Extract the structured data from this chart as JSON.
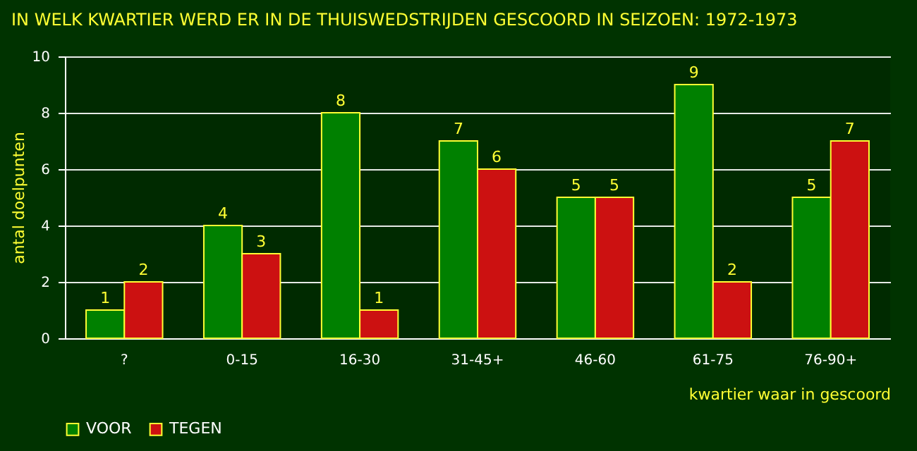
{
  "chart_data": {
    "type": "bar",
    "title": "IN WELK KWARTIER WERD ER IN DE THUISWEDSTRIJDEN GESCOORD IN SEIZOEN: 1972-1973",
    "xlabel": "kwartier waar in gescoord",
    "ylabel": "antal doelpunten",
    "categories": [
      "?",
      "0-15",
      "16-30",
      "31-45+",
      "46-60",
      "61-75",
      "76-90+"
    ],
    "series": [
      {
        "name": "VOOR",
        "color": "#008000",
        "values": [
          1,
          4,
          8,
          7,
          5,
          9,
          5
        ]
      },
      {
        "name": "TEGEN",
        "color": "#cc1111",
        "values": [
          2,
          3,
          1,
          6,
          5,
          2,
          7
        ]
      }
    ],
    "ylim": [
      0,
      10
    ],
    "yticks": [
      0,
      2,
      4,
      6,
      8,
      10
    ],
    "grid": "y",
    "legend": "bottom",
    "data_labels": true
  }
}
